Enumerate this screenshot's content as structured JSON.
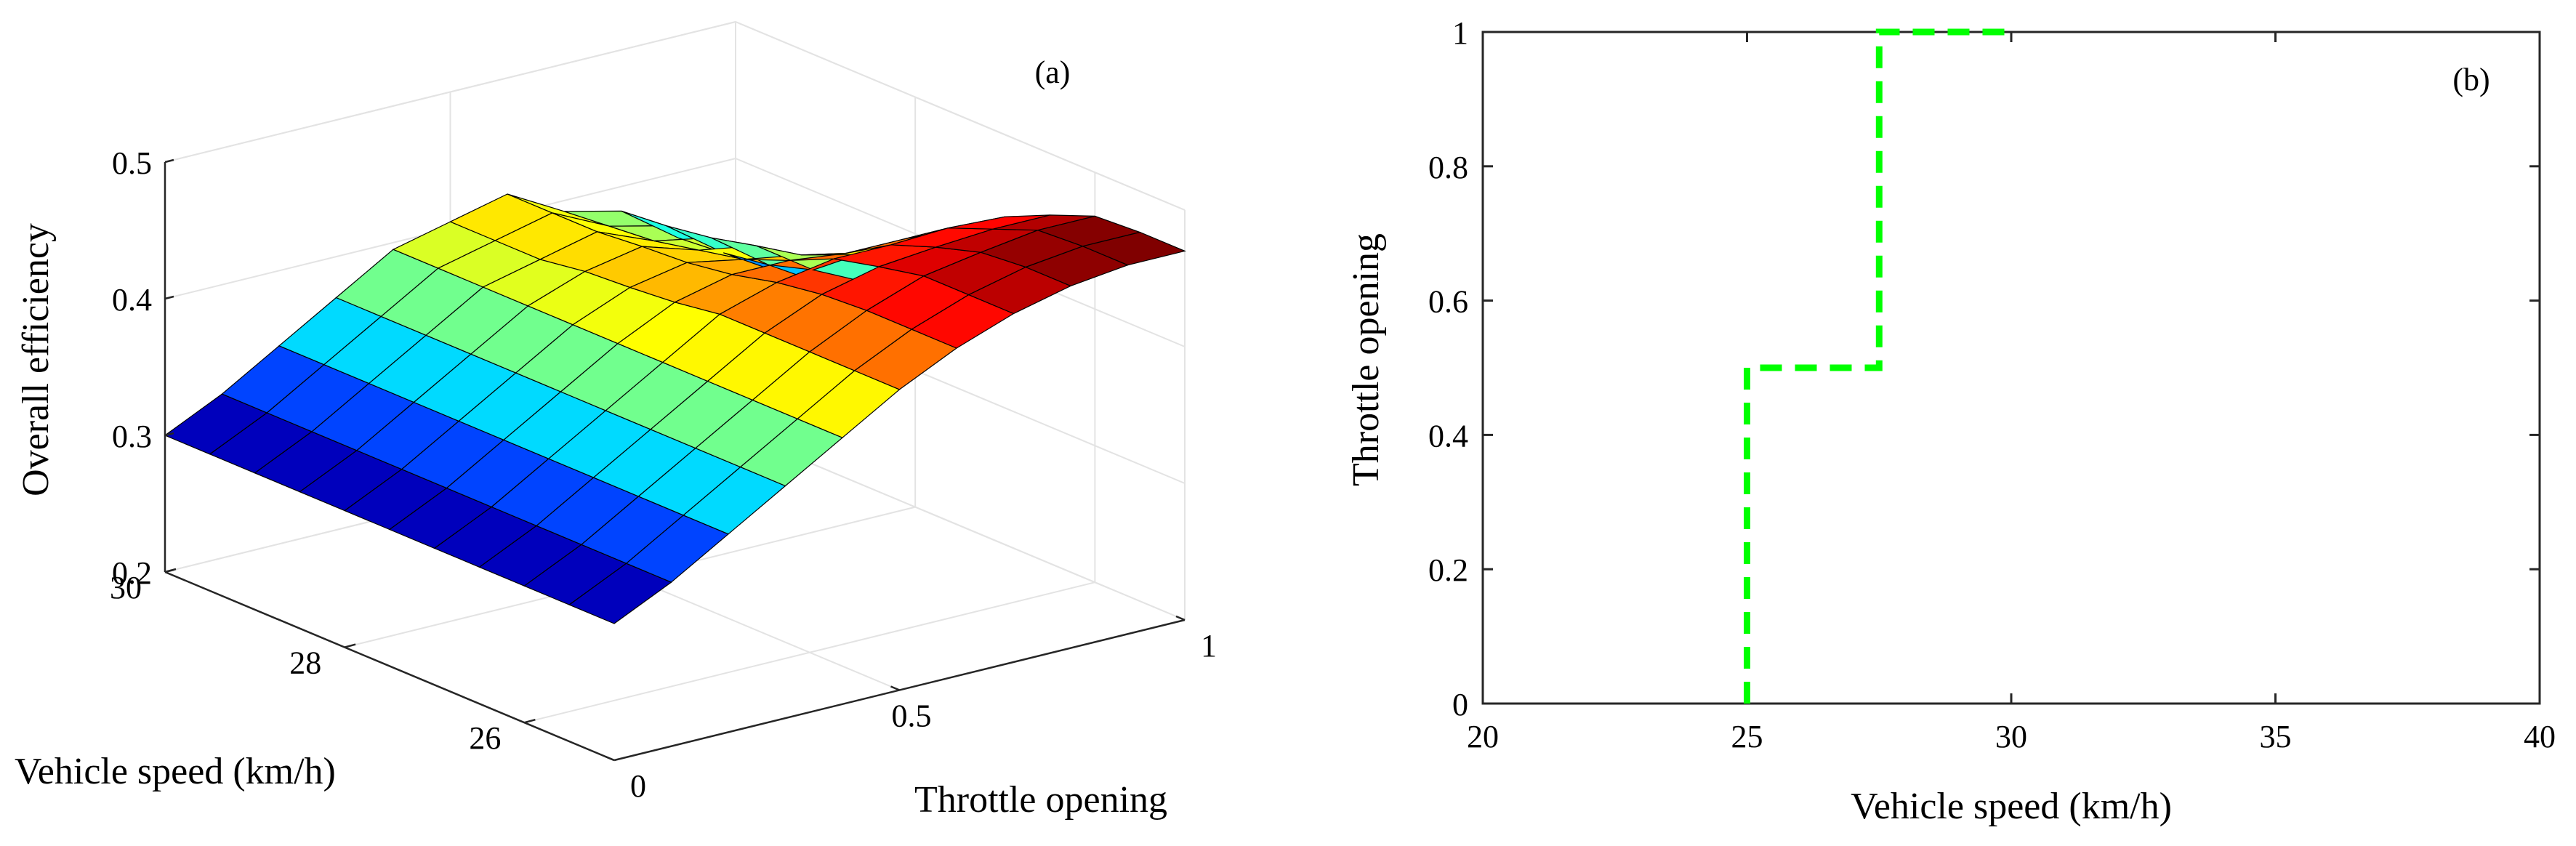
{
  "chart_data": [
    {
      "panel_label": "(a)",
      "type": "surface",
      "x_axis": {
        "label": "Throttle opening",
        "ticks": [
          "0",
          "0.5",
          "1"
        ],
        "range": [
          0,
          1
        ]
      },
      "y_axis": {
        "label": "Vehicle speed (km/h)",
        "ticks": [
          "26",
          "28",
          "30"
        ],
        "range": [
          25,
          30
        ]
      },
      "z_axis": {
        "label": "Overall efficiency",
        "ticks": [
          "0.2",
          "0.3",
          "0.4",
          "0.5"
        ],
        "range": [
          0.2,
          0.5
        ]
      },
      "colormap": "jet",
      "grid": true,
      "throttle": [
        0,
        0.1,
        0.2,
        0.3,
        0.4,
        0.5,
        0.6,
        0.7,
        0.8,
        0.9,
        1.0
      ],
      "speed": [
        25,
        25.5,
        26,
        26.5,
        27,
        27.5,
        28,
        28.5,
        29,
        29.5,
        30
      ],
      "efficiency": [
        [
          0.3,
          0.3,
          0.3,
          0.3,
          0.3,
          0.3,
          0.3,
          0.3,
          0.3,
          0.3,
          0.3
        ],
        [
          0.32,
          0.32,
          0.32,
          0.32,
          0.32,
          0.32,
          0.32,
          0.32,
          0.32,
          0.32,
          0.32
        ],
        [
          0.345,
          0.345,
          0.345,
          0.345,
          0.345,
          0.345,
          0.345,
          0.345,
          0.345,
          0.345,
          0.345
        ],
        [
          0.37,
          0.37,
          0.37,
          0.37,
          0.37,
          0.37,
          0.37,
          0.37,
          0.37,
          0.37,
          0.37
        ],
        [
          0.395,
          0.395,
          0.395,
          0.395,
          0.395,
          0.395,
          0.395,
          0.395,
          0.395,
          0.395,
          0.395
        ],
        [
          0.42,
          0.42,
          0.42,
          0.42,
          0.42,
          0.415,
          0.412,
          0.41,
          0.405,
          0.405,
          0.405
        ],
        [
          0.44,
          0.44,
          0.44,
          0.438,
          0.433,
          0.425,
          0.42,
          0.418,
          0.415,
          0.415,
          0.415
        ],
        [
          0.455,
          0.455,
          0.455,
          0.448,
          0.44,
          0.425,
          0.412,
          0.405,
          0.398,
          0.395,
          0.392
        ],
        [
          0.465,
          0.465,
          0.462,
          0.452,
          0.44,
          0.42,
          0.405,
          0.398,
          0.39,
          0.385,
          0.382
        ],
        [
          0.47,
          0.47,
          0.468,
          0.455,
          0.442,
          0.42,
          0.395,
          0.37,
          0.36,
          0.355,
          0.352
        ],
        [
          0.47,
          0.47,
          0.468,
          0.455,
          0.44,
          0.418,
          0.385,
          0.35,
          0.335,
          0.33,
          0.328
        ]
      ]
    },
    {
      "panel_label": "(b)",
      "type": "line",
      "xlabel": "Vehicle speed (km/h)",
      "ylabel": "Throttle opening",
      "xlim": [
        20,
        40
      ],
      "ylim": [
        0,
        1
      ],
      "xticks": [
        "20",
        "25",
        "30",
        "35",
        "40"
      ],
      "yticks": [
        "0",
        "0.2",
        "0.4",
        "0.6",
        "0.8",
        "1"
      ],
      "series": [
        {
          "style": "dashed",
          "color": "#00ff00",
          "x": [
            25,
            25,
            27.5,
            27.5,
            30
          ],
          "y": [
            0,
            0.5,
            0.5,
            1,
            1
          ]
        }
      ]
    }
  ]
}
